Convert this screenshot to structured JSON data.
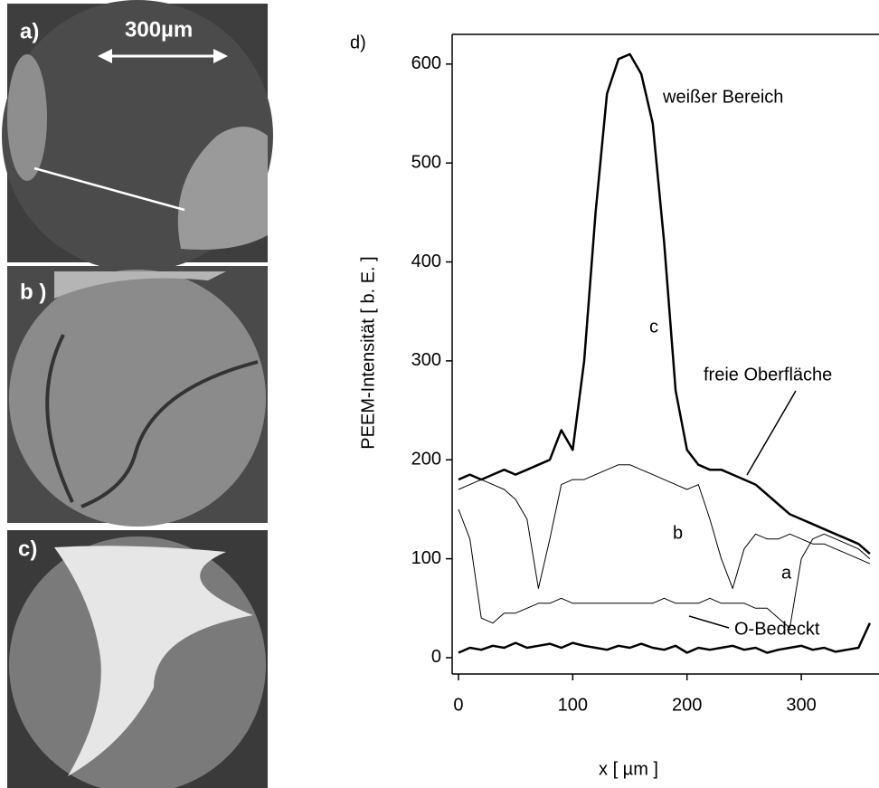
{
  "chart_data": {
    "type": "line",
    "title": "d)",
    "x_label": "x  [ µm ]",
    "y_label": "PEEM-Intensität  [ b. E. ]",
    "x": [
      0,
      10,
      20,
      30,
      40,
      50,
      60,
      70,
      80,
      90,
      100,
      110,
      120,
      130,
      140,
      150,
      160,
      170,
      180,
      190,
      200,
      210,
      220,
      230,
      240,
      250,
      260,
      270,
      280,
      290,
      300,
      310,
      320,
      330,
      340,
      350,
      360
    ],
    "series": [
      {
        "name": "c",
        "color": "#000000",
        "linewidth": 2.5,
        "values": [
          180,
          185,
          180,
          185,
          190,
          185,
          190,
          195,
          200,
          230,
          210,
          300,
          450,
          570,
          605,
          610,
          590,
          540,
          420,
          270,
          210,
          195,
          190,
          190,
          185,
          180,
          175,
          165,
          155,
          145,
          140,
          135,
          130,
          125,
          120,
          115,
          105
        ]
      },
      {
        "name": "b",
        "color": "#000000",
        "linewidth": 1,
        "values": [
          170,
          175,
          180,
          175,
          170,
          160,
          140,
          70,
          120,
          175,
          180,
          180,
          185,
          190,
          195,
          195,
          190,
          185,
          180,
          175,
          170,
          175,
          140,
          100,
          70,
          110,
          125,
          120,
          120,
          125,
          120,
          115,
          115,
          110,
          105,
          100,
          95
        ]
      },
      {
        "name": "a",
        "color": "#000000",
        "linewidth": 1,
        "values": [
          150,
          120,
          40,
          35,
          45,
          45,
          50,
          55,
          55,
          60,
          55,
          55,
          55,
          55,
          55,
          55,
          55,
          55,
          60,
          55,
          55,
          55,
          60,
          55,
          55,
          55,
          50,
          50,
          40,
          30,
          100,
          120,
          125,
          120,
          115,
          110,
          100
        ]
      },
      {
        "name": "O-Bedeckt",
        "color": "#000000",
        "linewidth": 2.5,
        "values": [
          5,
          10,
          8,
          12,
          10,
          15,
          10,
          12,
          14,
          10,
          15,
          12,
          10,
          8,
          12,
          10,
          14,
          10,
          8,
          12,
          5,
          10,
          8,
          10,
          12,
          8,
          10,
          5,
          8,
          10,
          12,
          8,
          10,
          6,
          8,
          10,
          35
        ]
      }
    ],
    "annotations": [
      "weißer Bereich",
      "freie Oberfläche"
    ],
    "xlim": [
      -5.5,
      368
    ],
    "ylim": [
      -16.5,
      630
    ],
    "xticks": [
      0,
      100,
      200,
      300
    ],
    "yticks": [
      0,
      100,
      200,
      300,
      400,
      500,
      600
    ]
  },
  "panels": {
    "a": "a)",
    "b": "b )",
    "c": "c)",
    "scale": "300µm"
  }
}
